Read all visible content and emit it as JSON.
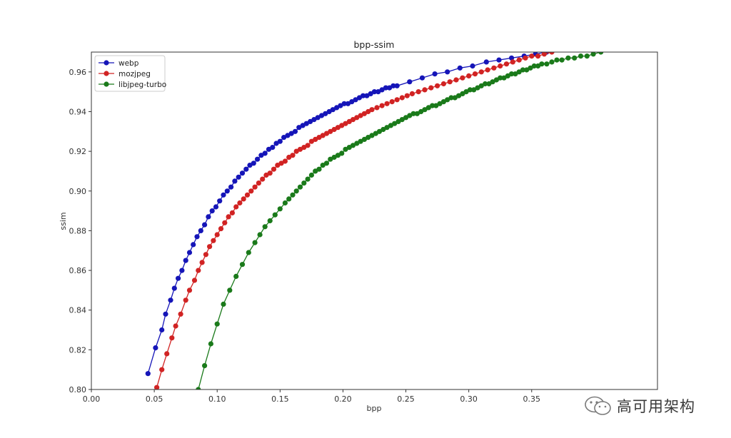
{
  "chart_data": {
    "type": "line",
    "title": "bpp-ssim",
    "xlabel": "bpp",
    "ylabel": "ssim",
    "xlim": [
      0.0,
      0.45
    ],
    "ylim": [
      0.8,
      0.97
    ],
    "xticks": [
      "0.00",
      "0.05",
      "0.10",
      "0.15",
      "0.20",
      "0.25",
      "0.30",
      "0.35"
    ],
    "yticks": [
      "0.80",
      "0.82",
      "0.84",
      "0.86",
      "0.88",
      "0.90",
      "0.92",
      "0.94",
      "0.96"
    ],
    "grid": false,
    "legend_position": "top-left",
    "marker": "circle",
    "series": [
      {
        "name": "webp",
        "color": "#1515b8",
        "x": [
          0.045,
          0.051,
          0.056,
          0.059,
          0.063,
          0.066,
          0.069,
          0.072,
          0.075,
          0.078,
          0.081,
          0.084,
          0.087,
          0.09,
          0.093,
          0.096,
          0.099,
          0.102,
          0.105,
          0.108,
          0.111,
          0.114,
          0.117,
          0.12,
          0.123,
          0.126,
          0.129,
          0.132,
          0.135,
          0.138,
          0.141,
          0.144,
          0.147,
          0.15,
          0.153,
          0.156,
          0.159,
          0.162,
          0.165,
          0.168,
          0.171,
          0.174,
          0.177,
          0.18,
          0.183,
          0.186,
          0.189,
          0.192,
          0.195,
          0.198,
          0.201,
          0.204,
          0.207,
          0.21,
          0.213,
          0.216,
          0.219,
          0.222,
          0.225,
          0.228,
          0.231,
          0.234,
          0.237,
          0.24,
          0.243,
          0.253,
          0.263,
          0.273,
          0.283,
          0.293,
          0.303,
          0.314,
          0.324,
          0.334,
          0.344,
          0.353,
          0.362
        ],
        "y": [
          0.808,
          0.821,
          0.83,
          0.838,
          0.845,
          0.851,
          0.856,
          0.86,
          0.865,
          0.869,
          0.873,
          0.877,
          0.88,
          0.883,
          0.887,
          0.89,
          0.892,
          0.895,
          0.898,
          0.9,
          0.902,
          0.905,
          0.907,
          0.909,
          0.911,
          0.913,
          0.914,
          0.916,
          0.918,
          0.919,
          0.921,
          0.922,
          0.924,
          0.925,
          0.927,
          0.928,
          0.929,
          0.93,
          0.932,
          0.933,
          0.934,
          0.935,
          0.936,
          0.937,
          0.938,
          0.939,
          0.94,
          0.941,
          0.942,
          0.943,
          0.944,
          0.944,
          0.945,
          0.946,
          0.947,
          0.948,
          0.948,
          0.949,
          0.95,
          0.95,
          0.951,
          0.952,
          0.952,
          0.953,
          0.953,
          0.955,
          0.957,
          0.959,
          0.96,
          0.962,
          0.963,
          0.965,
          0.966,
          0.967,
          0.968,
          0.969,
          0.97
        ]
      },
      {
        "name": "mozjpeg",
        "color": "#d12323",
        "x": [
          0.052,
          0.056,
          0.06,
          0.064,
          0.067,
          0.071,
          0.075,
          0.078,
          0.082,
          0.085,
          0.088,
          0.091,
          0.094,
          0.097,
          0.1,
          0.103,
          0.106,
          0.109,
          0.112,
          0.115,
          0.118,
          0.121,
          0.124,
          0.127,
          0.13,
          0.133,
          0.136,
          0.139,
          0.142,
          0.145,
          0.148,
          0.151,
          0.154,
          0.157,
          0.16,
          0.163,
          0.166,
          0.169,
          0.172,
          0.175,
          0.178,
          0.181,
          0.184,
          0.187,
          0.19,
          0.193,
          0.196,
          0.199,
          0.202,
          0.205,
          0.208,
          0.211,
          0.214,
          0.217,
          0.22,
          0.223,
          0.227,
          0.231,
          0.235,
          0.239,
          0.243,
          0.247,
          0.251,
          0.255,
          0.26,
          0.265,
          0.27,
          0.275,
          0.28,
          0.285,
          0.29,
          0.295,
          0.3,
          0.305,
          0.31,
          0.315,
          0.32,
          0.325,
          0.33,
          0.335,
          0.34,
          0.345,
          0.35,
          0.355,
          0.36,
          0.366
        ],
        "y": [
          0.801,
          0.81,
          0.818,
          0.826,
          0.832,
          0.838,
          0.845,
          0.85,
          0.855,
          0.86,
          0.864,
          0.868,
          0.872,
          0.875,
          0.878,
          0.881,
          0.884,
          0.887,
          0.889,
          0.892,
          0.894,
          0.896,
          0.898,
          0.9,
          0.902,
          0.904,
          0.906,
          0.908,
          0.909,
          0.911,
          0.913,
          0.914,
          0.915,
          0.917,
          0.918,
          0.92,
          0.921,
          0.922,
          0.923,
          0.925,
          0.926,
          0.927,
          0.928,
          0.929,
          0.93,
          0.931,
          0.932,
          0.933,
          0.934,
          0.935,
          0.936,
          0.937,
          0.938,
          0.939,
          0.94,
          0.941,
          0.942,
          0.943,
          0.944,
          0.945,
          0.946,
          0.947,
          0.948,
          0.949,
          0.95,
          0.951,
          0.952,
          0.953,
          0.954,
          0.955,
          0.956,
          0.957,
          0.958,
          0.959,
          0.96,
          0.961,
          0.962,
          0.963,
          0.964,
          0.965,
          0.966,
          0.967,
          0.968,
          0.968,
          0.969,
          0.97
        ]
      },
      {
        "name": "libjpeg-turbo",
        "color": "#1a7a1a",
        "x": [
          0.085,
          0.09,
          0.095,
          0.1,
          0.105,
          0.11,
          0.115,
          0.12,
          0.125,
          0.13,
          0.134,
          0.138,
          0.142,
          0.146,
          0.15,
          0.154,
          0.157,
          0.16,
          0.163,
          0.166,
          0.169,
          0.172,
          0.175,
          0.178,
          0.181,
          0.184,
          0.187,
          0.19,
          0.193,
          0.196,
          0.199,
          0.202,
          0.205,
          0.208,
          0.211,
          0.214,
          0.217,
          0.22,
          0.223,
          0.226,
          0.229,
          0.232,
          0.235,
          0.238,
          0.241,
          0.244,
          0.247,
          0.25,
          0.253,
          0.256,
          0.259,
          0.262,
          0.265,
          0.268,
          0.271,
          0.274,
          0.277,
          0.28,
          0.283,
          0.286,
          0.289,
          0.292,
          0.295,
          0.298,
          0.301,
          0.304,
          0.307,
          0.31,
          0.313,
          0.316,
          0.319,
          0.322,
          0.325,
          0.328,
          0.331,
          0.334,
          0.337,
          0.34,
          0.343,
          0.346,
          0.349,
          0.352,
          0.355,
          0.358,
          0.362,
          0.366,
          0.37,
          0.374,
          0.379,
          0.384,
          0.389,
          0.394,
          0.399,
          0.405
        ],
        "y": [
          0.8,
          0.812,
          0.823,
          0.833,
          0.843,
          0.85,
          0.857,
          0.863,
          0.869,
          0.874,
          0.878,
          0.882,
          0.885,
          0.888,
          0.891,
          0.894,
          0.896,
          0.898,
          0.9,
          0.902,
          0.904,
          0.906,
          0.908,
          0.91,
          0.911,
          0.913,
          0.914,
          0.916,
          0.917,
          0.918,
          0.919,
          0.921,
          0.922,
          0.923,
          0.924,
          0.925,
          0.926,
          0.927,
          0.928,
          0.929,
          0.93,
          0.931,
          0.932,
          0.933,
          0.934,
          0.935,
          0.936,
          0.937,
          0.938,
          0.939,
          0.939,
          0.94,
          0.941,
          0.942,
          0.943,
          0.943,
          0.944,
          0.945,
          0.946,
          0.947,
          0.947,
          0.948,
          0.949,
          0.95,
          0.951,
          0.951,
          0.952,
          0.953,
          0.954,
          0.954,
          0.955,
          0.956,
          0.957,
          0.957,
          0.958,
          0.959,
          0.959,
          0.96,
          0.961,
          0.961,
          0.962,
          0.963,
          0.963,
          0.964,
          0.964,
          0.965,
          0.966,
          0.966,
          0.967,
          0.967,
          0.968,
          0.968,
          0.969,
          0.97
        ]
      }
    ]
  },
  "watermark": {
    "text": "高可用架构",
    "icon": "wechat-icon"
  }
}
